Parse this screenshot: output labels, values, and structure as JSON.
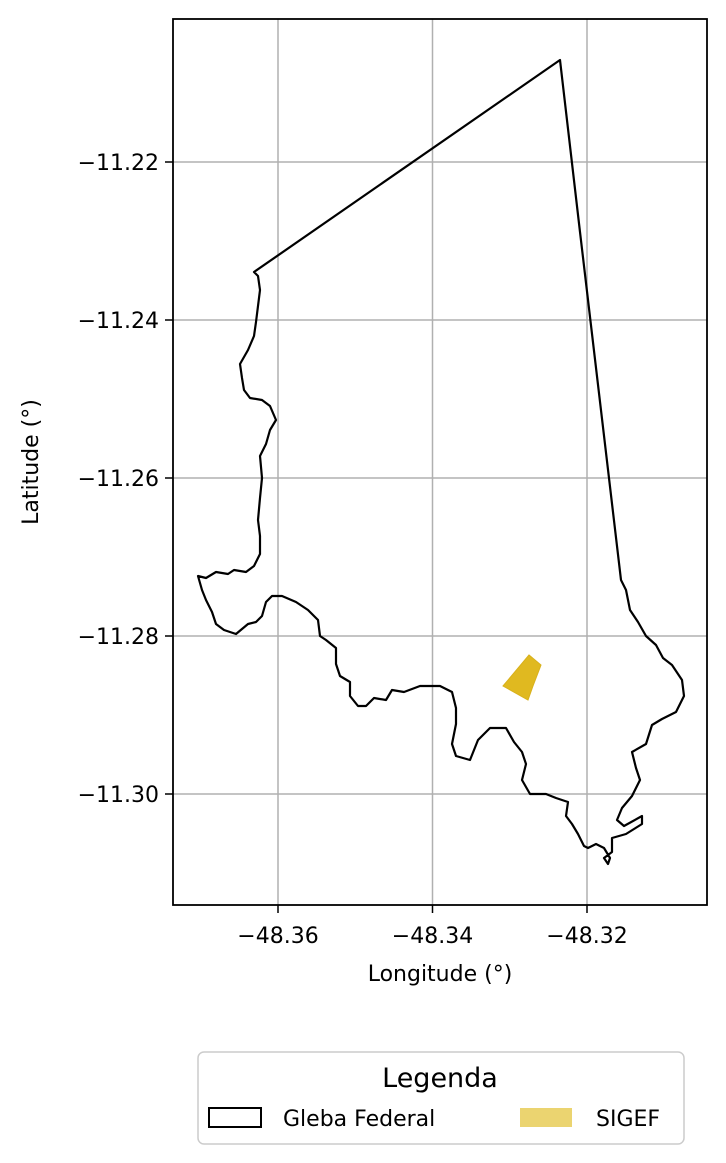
{
  "chart_data": {
    "type": "map",
    "title": "",
    "xlabel": "Longitude (°)",
    "ylabel": "Latitude (°)",
    "xlim": [
      -48.3735,
      -48.3045
    ],
    "ylim": [
      -11.3145,
      -11.2025
    ],
    "grid": true,
    "x_ticks": [
      -48.36,
      -48.34,
      -48.32
    ],
    "y_ticks": [
      -11.22,
      -11.24,
      -11.26,
      -11.28,
      -11.3
    ],
    "x_tick_labels": [
      "−48.36",
      "−48.34",
      "−48.32"
    ],
    "y_tick_labels": [
      "−11.22",
      "−11.24",
      "−11.26",
      "−11.28",
      "−11.30"
    ],
    "legend": {
      "title": "Legenda",
      "placement": "bottom-center",
      "entries": [
        {
          "label": "Gleba Federal",
          "kind": "outline"
        },
        {
          "label": "SIGEF",
          "kind": "fill"
        }
      ]
    },
    "colors": {
      "gleba_outline": "#000000",
      "sigef_fill": "#e0b920",
      "sigef_legend_fill": "#ebd470",
      "grid": "#b0b0b0"
    },
    "layers": [
      {
        "name": "Gleba Federal",
        "style": "outline",
        "coordinates": [
          [
            -48.3633,
            -11.2343
          ],
          [
            -48.3235,
            -11.2064
          ],
          [
            -48.3196,
            -11.2292
          ],
          [
            -48.3151,
            -11.2724
          ],
          [
            -48.3141,
            -11.2744
          ],
          [
            -48.3132,
            -11.278
          ],
          [
            -48.3118,
            -11.2807
          ],
          [
            -48.31,
            -11.2839
          ],
          [
            -48.308,
            -11.286
          ],
          [
            -48.3065,
            -11.2876
          ],
          [
            -48.3065,
            -11.2889
          ],
          [
            -48.308,
            -11.2907
          ],
          [
            -48.31,
            -11.2912
          ],
          [
            -48.3113,
            -11.2924
          ],
          [
            -48.312,
            -11.2944
          ],
          [
            -48.3131,
            -11.2965
          ],
          [
            -48.3123,
            -11.2983
          ],
          [
            -48.3128,
            -11.3002
          ],
          [
            -48.3143,
            -11.3021
          ],
          [
            -48.3137,
            -11.3038
          ],
          [
            -48.3129,
            -11.3046
          ],
          [
            -48.3149,
            -11.3047
          ],
          [
            -48.3159,
            -11.3054
          ],
          [
            -48.3166,
            -11.307
          ],
          [
            -48.3176,
            -11.3077
          ],
          [
            -48.3182,
            -11.3094
          ],
          [
            -48.3191,
            -11.3086
          ],
          [
            -48.3194,
            -11.3076
          ],
          [
            -48.3201,
            -11.3068
          ],
          [
            -48.3216,
            -11.3068
          ],
          [
            -48.3226,
            -11.3062
          ],
          [
            -48.3232,
            -11.3055
          ],
          [
            -48.324,
            -11.3046
          ],
          [
            -48.324,
            -11.3035
          ],
          [
            -48.3251,
            -11.3019
          ],
          [
            -48.3271,
            -11.3007
          ],
          [
            -48.3288,
            -11.3002
          ],
          [
            -48.3291,
            -11.2987
          ],
          [
            -48.3286,
            -11.2976
          ],
          [
            -48.3289,
            -11.296
          ],
          [
            -48.3292,
            -11.2944
          ],
          [
            -48.33,
            -11.2934
          ],
          [
            -48.331,
            -11.2919
          ],
          [
            -48.333,
            -11.292
          ],
          [
            -48.334,
            -11.293
          ],
          [
            -48.3352,
            -11.295
          ],
          [
            -48.3361,
            -11.2965
          ],
          [
            -48.3372,
            -11.2962
          ],
          [
            -48.3382,
            -11.2949
          ],
          [
            -48.3385,
            -11.2932
          ],
          [
            -48.3387,
            -11.291
          ],
          [
            -48.3385,
            -11.2884
          ],
          [
            -48.3375,
            -11.2875
          ],
          [
            -48.3355,
            -11.2866
          ],
          [
            -48.3335,
            -11.2866
          ],
          [
            -48.3317,
            -11.2871
          ],
          [
            -48.3301,
            -11.2873
          ],
          [
            -48.3291,
            -11.288
          ],
          [
            -48.3281,
            -11.2884
          ],
          [
            -48.327,
            -11.2891
          ],
          [
            -48.3258,
            -11.2888
          ],
          [
            -48.3247,
            -11.2896
          ],
          [
            -48.3237,
            -11.2899
          ],
          [
            -48.3227,
            -11.2913
          ],
          [
            -48.3221,
            -11.292
          ],
          [
            -48.3224,
            -11.2936
          ],
          [
            -48.3231,
            -11.2947
          ],
          [
            -48.3226,
            -11.2954
          ],
          [
            -48.322,
            -11.2963
          ],
          [
            -48.3218,
            -11.2975
          ],
          [
            -48.3215,
            -11.2993
          ],
          [
            -48.32,
            -11.2998
          ],
          [
            -48.319,
            -11.3005
          ],
          [
            -48.3182,
            -11.3011
          ],
          [
            -48.3175,
            -11.3021
          ],
          [
            -48.3167,
            -11.3031
          ],
          [
            -48.3161,
            -11.3045
          ],
          [
            -48.3159,
            -11.3054
          ]
        ],
        "outline_note": "open rendered path, traced below"
      },
      {
        "name": "SIGEF",
        "style": "fill",
        "coordinates": [
          [
            -48.33,
            -11.2862
          ],
          [
            -48.3274,
            -11.2824
          ],
          [
            -48.3258,
            -11.2837
          ],
          [
            -48.327,
            -11.286
          ],
          [
            -48.3266,
            -11.288
          ],
          [
            -48.3285,
            -11.2874
          ]
        ]
      }
    ]
  }
}
